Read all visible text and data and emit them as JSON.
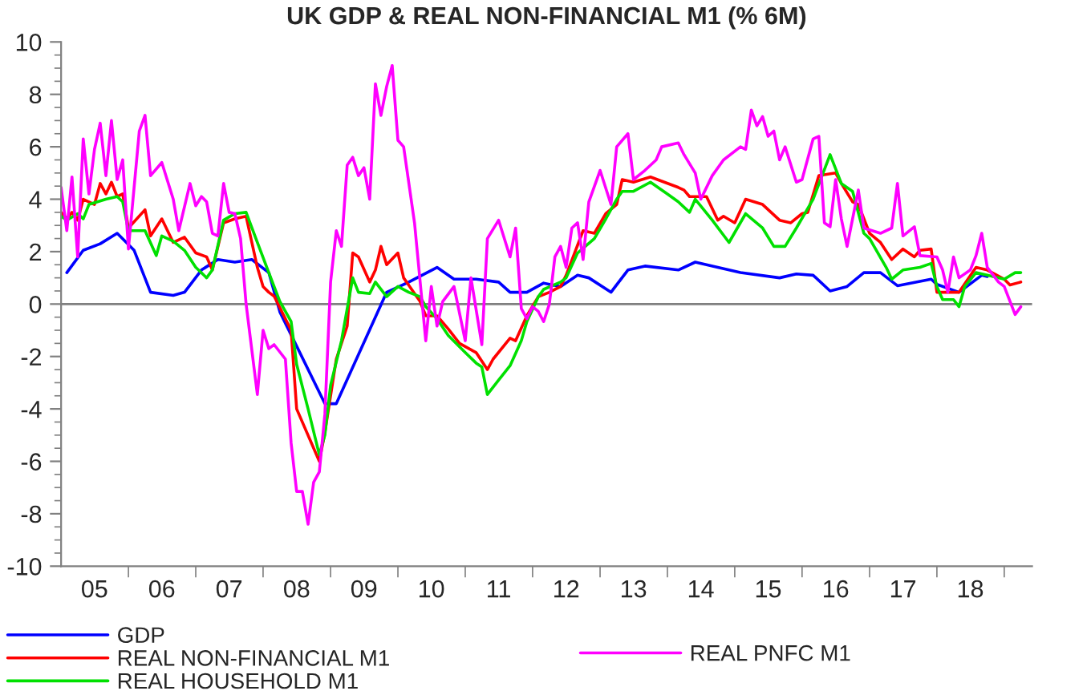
{
  "chart_data": {
    "type": "line",
    "title": "UK GDP & REAL NON-FINANCIAL M1 (% 6M)",
    "xlim": [
      "2005-01",
      "2019-06"
    ],
    "ylim": [
      -10,
      10
    ],
    "xticks": [
      {
        "value": "2005-07",
        "label": "05"
      },
      {
        "value": "2006-01",
        "label": null
      },
      {
        "value": "2006-07",
        "label": "06"
      },
      {
        "value": "2007-01",
        "label": null
      },
      {
        "value": "2007-07",
        "label": "07"
      },
      {
        "value": "2008-01",
        "label": null
      },
      {
        "value": "2008-07",
        "label": "08"
      },
      {
        "value": "2009-01",
        "label": null
      },
      {
        "value": "2009-07",
        "label": "09"
      },
      {
        "value": "2010-01",
        "label": null
      },
      {
        "value": "2010-07",
        "label": "10"
      },
      {
        "value": "2011-01",
        "label": null
      },
      {
        "value": "2011-07",
        "label": "11"
      },
      {
        "value": "2012-01",
        "label": null
      },
      {
        "value": "2012-07",
        "label": "12"
      },
      {
        "value": "2013-01",
        "label": null
      },
      {
        "value": "2013-07",
        "label": "13"
      },
      {
        "value": "2014-01",
        "label": null
      },
      {
        "value": "2014-07",
        "label": "14"
      },
      {
        "value": "2015-01",
        "label": null
      },
      {
        "value": "2015-07",
        "label": "15"
      },
      {
        "value": "2016-01",
        "label": null
      },
      {
        "value": "2016-07",
        "label": "16"
      },
      {
        "value": "2017-01",
        "label": null
      },
      {
        "value": "2017-07",
        "label": "17"
      },
      {
        "value": "2018-01",
        "label": null
      },
      {
        "value": "2018-07",
        "label": "18"
      },
      {
        "value": "2019-01",
        "label": null
      }
    ],
    "yticks": [
      -10,
      {
        "value": -9.5,
        "label": null
      },
      {
        "value": -9,
        "label": null
      },
      {
        "value": -8.5,
        "label": null
      },
      -8,
      {
        "value": -7.5,
        "label": null
      },
      {
        "value": -7,
        "label": null
      },
      {
        "value": -6.5,
        "label": null
      },
      -6,
      {
        "value": -5.5,
        "label": null
      },
      {
        "value": -5,
        "label": null
      },
      {
        "value": -4.5,
        "label": null
      },
      -4,
      {
        "value": -3.5,
        "label": null
      },
      {
        "value": -3,
        "label": null
      },
      {
        "value": -2.5,
        "label": null
      },
      -2,
      {
        "value": -1.5,
        "label": null
      },
      {
        "value": -1,
        "label": null
      },
      {
        "value": -0.5,
        "label": null
      },
      0,
      {
        "value": 0.5,
        "label": null
      },
      {
        "value": 1,
        "label": null
      },
      {
        "value": 1.5,
        "label": null
      },
      2,
      {
        "value": 2.5,
        "label": null
      },
      {
        "value": 3,
        "label": null
      },
      {
        "value": 3.5,
        "label": null
      },
      4,
      {
        "value": 4.5,
        "label": null
      },
      {
        "value": 5,
        "label": null
      },
      {
        "value": 5.5,
        "label": null
      },
      6,
      {
        "value": 6.5,
        "label": null
      },
      {
        "value": 7,
        "label": null
      },
      {
        "value": 7.5,
        "label": null
      },
      8,
      {
        "value": 8.5,
        "label": null
      },
      {
        "value": 9,
        "label": null
      },
      {
        "value": 9.5,
        "label": null
      },
      10
    ],
    "grid": false,
    "legend": "bottom",
    "marker": "none",
    "line_style": "solid",
    "ref_lines": [
      {
        "axis": "y",
        "value": 0,
        "color": "#808080"
      }
    ],
    "series": [
      {
        "name": "GDP",
        "color": "#0000ff",
        "x": [
          "2005-02",
          "2005-05",
          "2005-08",
          "2005-11",
          "2006-02",
          "2006-05",
          "2006-09",
          "2006-11",
          "2007-02",
          "2007-05",
          "2007-08",
          "2007-11",
          "2008-02",
          "2008-04",
          "2008-12",
          "2009-02",
          "2009-11",
          "2010-03",
          "2010-08",
          "2010-11",
          "2011-03",
          "2011-07",
          "2011-09",
          "2011-12",
          "2012-03",
          "2012-06",
          "2012-09",
          "2012-11",
          "2013-03",
          "2013-06",
          "2013-09",
          "2014-03",
          "2014-06",
          "2014-10",
          "2015-02",
          "2015-09",
          "2015-12",
          "2016-03",
          "2016-06",
          "2016-09",
          "2016-12",
          "2017-03",
          "2017-06",
          "2017-12",
          "2018-01",
          "2018-05",
          "2018-09",
          "2018-10"
        ],
        "values": [
          1.2,
          2.05,
          2.3,
          2.7,
          2.05,
          0.45,
          0.33,
          0.45,
          1.3,
          1.7,
          1.6,
          1.7,
          1.2,
          -0.3,
          -3.8,
          -3.8,
          0.45,
          0.84,
          1.4,
          0.95,
          0.95,
          0.84,
          0.45,
          0.45,
          0.8,
          0.67,
          1.1,
          1.0,
          0.45,
          1.3,
          1.45,
          1.3,
          1.6,
          1.4,
          1.2,
          1.0,
          1.15,
          1.1,
          0.5,
          0.67,
          1.2,
          1.2,
          0.7,
          0.95,
          0.75,
          0.45,
          1.1,
          1.05
        ]
      },
      {
        "name": "REAL NON-FINANCIAL M1",
        "color": "#ff0000",
        "x": [
          "2005-01",
          "2005-02",
          "2005-03",
          "2005-04",
          "2005-05",
          "2005-07",
          "2005-08",
          "2005-09",
          "2005-10",
          "2005-11",
          "2005-12",
          "2006-01",
          "2006-04",
          "2006-05",
          "2006-07",
          "2006-09",
          "2006-11",
          "2007-01",
          "2007-03",
          "2007-04",
          "2007-06",
          "2007-08",
          "2007-10",
          "2007-11",
          "2007-12",
          "2008-01",
          "2008-02",
          "2008-03",
          "2008-06",
          "2008-07",
          "2008-11",
          "2008-12",
          "2009-02",
          "2009-04",
          "2009-05",
          "2009-06",
          "2009-08",
          "2009-09",
          "2009-10",
          "2009-11",
          "2010-01",
          "2010-02",
          "2010-05",
          "2010-06",
          "2010-08",
          "2010-10",
          "2010-12",
          "2011-03",
          "2011-05",
          "2011-06",
          "2011-09",
          "2011-10",
          "2011-12",
          "2012-02",
          "2012-04",
          "2012-06",
          "2012-07",
          "2012-10",
          "2012-12",
          "2013-02",
          "2013-04",
          "2013-05",
          "2013-07",
          "2013-10",
          "2014-03",
          "2014-04",
          "2014-05",
          "2014-08",
          "2014-10",
          "2014-11",
          "2015-01",
          "2015-03",
          "2015-06",
          "2015-09",
          "2015-11",
          "2016-01",
          "2016-02",
          "2016-04",
          "2016-07",
          "2016-08",
          "2016-10",
          "2016-11",
          "2017-01",
          "2017-03",
          "2017-05",
          "2017-07",
          "2017-09",
          "2017-10",
          "2017-12",
          "2018-01",
          "2018-03",
          "2018-05",
          "2018-08",
          "2018-10",
          "2019-01",
          "2019-02",
          "2019-04"
        ],
        "values": [
          3.5,
          3.25,
          3.5,
          3.2,
          4.0,
          3.8,
          4.6,
          4.2,
          4.65,
          4.1,
          4.2,
          2.9,
          3.6,
          2.6,
          3.25,
          2.35,
          2.55,
          1.95,
          1.8,
          1.3,
          3.1,
          3.25,
          3.35,
          2.35,
          1.4,
          0.67,
          0.45,
          0.3,
          -1.0,
          -4.0,
          -6.0,
          -4.9,
          -2.1,
          -0.84,
          1.95,
          1.8,
          0.84,
          1.3,
          2.2,
          1.5,
          1.95,
          1.0,
          0.1,
          -0.45,
          -0.45,
          -0.95,
          -1.5,
          -1.85,
          -2.5,
          -2.1,
          -1.3,
          -1.4,
          -0.45,
          0.28,
          0.45,
          0.67,
          1.1,
          2.8,
          2.7,
          3.45,
          3.8,
          4.75,
          4.65,
          4.85,
          4.45,
          4.35,
          4.1,
          4.1,
          3.2,
          3.35,
          3.1,
          4.0,
          3.8,
          3.2,
          3.1,
          3.45,
          3.5,
          4.9,
          5.0,
          4.6,
          3.9,
          3.8,
          2.7,
          2.35,
          1.7,
          2.1,
          1.8,
          2.05,
          2.1,
          0.45,
          0.45,
          0.45,
          1.4,
          1.3,
          0.95,
          0.73,
          0.84
        ]
      },
      {
        "name": "REAL HOUSEHOLD M1",
        "color": "#00e000",
        "x": [
          "2005-01",
          "2005-02",
          "2005-04",
          "2005-05",
          "2005-06",
          "2005-09",
          "2005-11",
          "2005-12",
          "2006-01",
          "2006-04",
          "2006-06",
          "2006-07",
          "2006-09",
          "2006-11",
          "2007-01",
          "2007-03",
          "2007-04",
          "2007-06",
          "2007-08",
          "2007-10",
          "2007-12",
          "2008-02",
          "2008-04",
          "2008-06",
          "2008-07",
          "2008-09",
          "2008-11",
          "2008-12",
          "2009-01",
          "2009-03",
          "2009-05",
          "2009-06",
          "2009-08",
          "2009-09",
          "2009-11",
          "2010-01",
          "2010-03",
          "2010-05",
          "2010-06",
          "2010-08",
          "2010-10",
          "2011-01",
          "2011-03",
          "2011-04",
          "2011-05",
          "2011-07",
          "2011-09",
          "2011-11",
          "2011-12",
          "2012-02",
          "2012-03",
          "2012-06",
          "2012-07",
          "2012-09",
          "2012-12",
          "2013-02",
          "2013-04",
          "2013-05",
          "2013-07",
          "2013-10",
          "2014-01",
          "2014-03",
          "2014-05",
          "2014-06",
          "2014-09",
          "2014-12",
          "2015-03",
          "2015-06",
          "2015-08",
          "2015-10",
          "2015-12",
          "2016-03",
          "2016-06",
          "2016-08",
          "2016-10",
          "2016-12",
          "2017-01",
          "2017-04",
          "2017-05",
          "2017-07",
          "2017-10",
          "2017-12",
          "2018-01",
          "2018-02",
          "2018-04",
          "2018-05",
          "2018-06",
          "2018-08",
          "2018-10",
          "2019-01",
          "2019-03",
          "2019-04"
        ],
        "values": [
          3.35,
          3.2,
          3.45,
          3.25,
          3.8,
          4.0,
          4.1,
          3.9,
          2.8,
          2.8,
          1.85,
          2.6,
          2.4,
          2.05,
          1.4,
          1.0,
          1.3,
          3.2,
          3.45,
          3.5,
          2.35,
          1.2,
          0.1,
          -0.67,
          -2.3,
          -4.0,
          -5.75,
          -5.0,
          -3.1,
          -1.4,
          1.0,
          0.45,
          0.4,
          0.84,
          0.28,
          0.67,
          0.45,
          0.28,
          -0.1,
          -0.56,
          -1.2,
          -1.85,
          -2.25,
          -2.4,
          -3.45,
          -2.9,
          -2.35,
          -1.4,
          -0.67,
          0.28,
          0.56,
          0.84,
          1.0,
          1.95,
          2.5,
          3.25,
          4.0,
          4.3,
          4.3,
          4.65,
          4.2,
          3.9,
          3.5,
          4.0,
          3.2,
          2.35,
          3.45,
          2.9,
          2.2,
          2.2,
          2.9,
          4.0,
          5.7,
          4.6,
          4.3,
          2.7,
          2.5,
          1.4,
          0.95,
          1.3,
          1.4,
          1.55,
          0.67,
          0.17,
          0.17,
          -0.1,
          0.67,
          1.2,
          1.1,
          0.95,
          1.2,
          1.2
        ]
      },
      {
        "name": "REAL PNFC M1",
        "color": "#ff00ff",
        "x": [
          "2005-01",
          "2005-02",
          "2005-03",
          "2005-04",
          "2005-05",
          "2005-06",
          "2005-07",
          "2005-08",
          "2005-09",
          "2005-10",
          "2005-11",
          "2005-12",
          "2006-01",
          "2006-03",
          "2006-04",
          "2006-05",
          "2006-07",
          "2006-09",
          "2006-10",
          "2006-12",
          "2007-01",
          "2007-02",
          "2007-03",
          "2007-04",
          "2007-05",
          "2007-06",
          "2007-07",
          "2007-08",
          "2007-09",
          "2007-10",
          "2007-12",
          "2008-01",
          "2008-02",
          "2008-03",
          "2008-05",
          "2008-06",
          "2008-07",
          "2008-08",
          "2008-09",
          "2008-10",
          "2008-11",
          "2008-12",
          "2009-01",
          "2009-02",
          "2009-03",
          "2009-04",
          "2009-05",
          "2009-06",
          "2009-07",
          "2009-08",
          "2009-09",
          "2009-10",
          "2009-11",
          "2009-12",
          "2010-01",
          "2010-02",
          "2010-04",
          "2010-06",
          "2010-07",
          "2010-08",
          "2010-09",
          "2010-11",
          "2011-01",
          "2011-02",
          "2011-04",
          "2011-05",
          "2011-07",
          "2011-09",
          "2011-10",
          "2011-11",
          "2011-12",
          "2012-01",
          "2012-02",
          "2012-03",
          "2012-04",
          "2012-05",
          "2012-06",
          "2012-07",
          "2012-08",
          "2012-09",
          "2012-10",
          "2012-11",
          "2013-01",
          "2013-03",
          "2013-04",
          "2013-06",
          "2013-07",
          "2013-09",
          "2013-11",
          "2013-12",
          "2014-03",
          "2014-04",
          "2014-06",
          "2014-07",
          "2014-09",
          "2014-11",
          "2015-02",
          "2015-03",
          "2015-04",
          "2015-05",
          "2015-06",
          "2015-07",
          "2015-08",
          "2015-09",
          "2015-10",
          "2015-12",
          "2016-01",
          "2016-03",
          "2016-04",
          "2016-05",
          "2016-06",
          "2016-07",
          "2016-08",
          "2016-09",
          "2016-11",
          "2016-12",
          "2017-03",
          "2017-05",
          "2017-06",
          "2017-07",
          "2017-09",
          "2017-10",
          "2018-01",
          "2018-02",
          "2018-03",
          "2018-04",
          "2018-05",
          "2018-07",
          "2018-08",
          "2018-09",
          "2018-10",
          "2018-12",
          "2019-01",
          "2019-03",
          "2019-04"
        ],
        "values": [
          4.45,
          2.8,
          4.85,
          1.8,
          6.3,
          4.2,
          5.9,
          6.9,
          4.9,
          7.0,
          4.75,
          5.5,
          2.1,
          6.6,
          7.2,
          4.9,
          5.4,
          4.0,
          2.8,
          4.6,
          3.75,
          4.1,
          3.9,
          2.7,
          2.6,
          4.6,
          3.5,
          3.45,
          2.5,
          0.0,
          -3.45,
          -1.0,
          -1.7,
          -1.55,
          -2.1,
          -5.3,
          -7.15,
          -7.15,
          -8.4,
          -6.8,
          -6.4,
          -4.2,
          0.84,
          2.8,
          2.2,
          5.3,
          5.6,
          4.9,
          5.2,
          4.0,
          8.4,
          7.2,
          8.3,
          9.1,
          6.25,
          6.0,
          3.1,
          -1.4,
          0.67,
          -0.84,
          0.1,
          0.67,
          -1.4,
          1.0,
          -1.55,
          2.5,
          3.2,
          1.8,
          2.9,
          -0.17,
          -0.56,
          -0.1,
          -0.28,
          -0.67,
          0.0,
          1.8,
          2.2,
          1.4,
          2.9,
          3.1,
          1.7,
          3.9,
          5.1,
          3.8,
          6.0,
          6.5,
          4.75,
          5.1,
          5.5,
          6.0,
          6.15,
          5.7,
          5.0,
          4.0,
          4.9,
          5.5,
          6.0,
          5.9,
          7.4,
          6.8,
          7.15,
          6.4,
          6.6,
          5.5,
          6.0,
          4.65,
          4.75,
          6.3,
          6.4,
          3.1,
          2.95,
          4.75,
          3.25,
          2.2,
          4.35,
          2.9,
          2.7,
          2.9,
          4.6,
          2.6,
          2.95,
          1.85,
          1.8,
          1.3,
          0.45,
          1.8,
          1.0,
          1.3,
          1.85,
          2.7,
          1.4,
          0.84,
          0.67,
          -0.4,
          -0.1
        ]
      }
    ]
  }
}
